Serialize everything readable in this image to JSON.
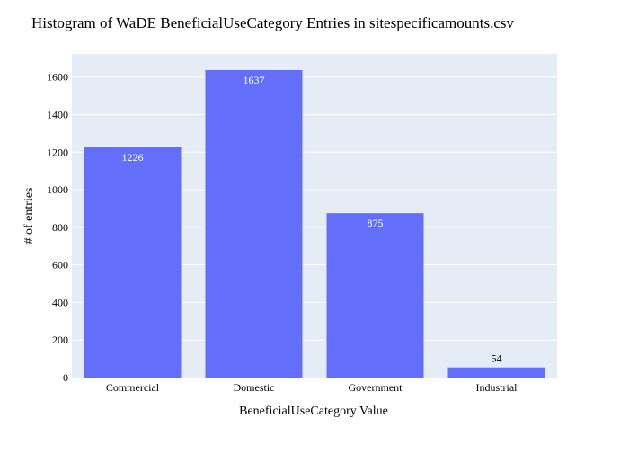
{
  "chart_data": {
    "type": "bar",
    "title": "Histogram of WaDE BeneficialUseCategory Entries in sitespecificamounts.csv",
    "xlabel": "BeneficialUseCategory Value",
    "ylabel": "# of entries",
    "categories": [
      "Commercial",
      "Domestic",
      "Government",
      "Industrial"
    ],
    "values": [
      1226,
      1637,
      875,
      54
    ],
    "data_labels": [
      "1226",
      "1637",
      "875",
      "54"
    ],
    "ylim": [
      0,
      1723
    ],
    "yticks": [
      0,
      200,
      400,
      600,
      800,
      1000,
      1200,
      1400,
      1600
    ],
    "grid": true,
    "legend": "none",
    "colors": {
      "bar": "#636efa",
      "plot_background": "#e5ecf6",
      "grid": "#ffffff",
      "text": "#2a3f5f"
    }
  }
}
